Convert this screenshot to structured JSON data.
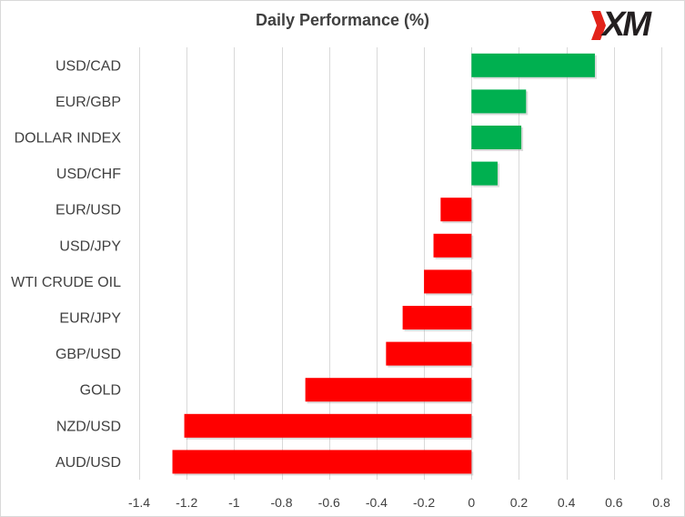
{
  "chart_data": {
    "type": "bar",
    "orientation": "horizontal",
    "title": "Daily Performance (%)",
    "categories": [
      "USD/CAD",
      "EUR/GBP",
      "DOLLAR INDEX",
      "USD/CHF",
      "EUR/USD",
      "USD/JPY",
      "WTI CRUDE OIL",
      "EUR/JPY",
      "GBP/USD",
      "GOLD",
      "NZD/USD",
      "AUD/USD"
    ],
    "values": [
      0.52,
      0.23,
      0.21,
      0.11,
      -0.13,
      -0.16,
      -0.2,
      -0.29,
      -0.36,
      -0.7,
      -1.21,
      -1.26
    ],
    "xlim": [
      -1.4,
      0.8
    ],
    "xticks": [
      -1.4,
      -1.2,
      -1,
      -0.8,
      -0.6,
      -0.4,
      -0.2,
      0,
      0.2,
      0.4,
      0.6,
      0.8
    ],
    "xtick_labels": [
      "-1.4",
      "-1.2",
      "-1",
      "-0.8",
      "-0.6",
      "-0.4",
      "-0.2",
      "0",
      "0.2",
      "0.4",
      "0.6",
      "0.8"
    ],
    "grid": "vertical",
    "legend": "none",
    "colors": {
      "positive": "#00b050",
      "negative": "#ff0000",
      "grid": "#d9d9d9",
      "text": "#404040"
    }
  },
  "brand": {
    "logo_text": "XM",
    "logo_accent": "#e2231a"
  }
}
